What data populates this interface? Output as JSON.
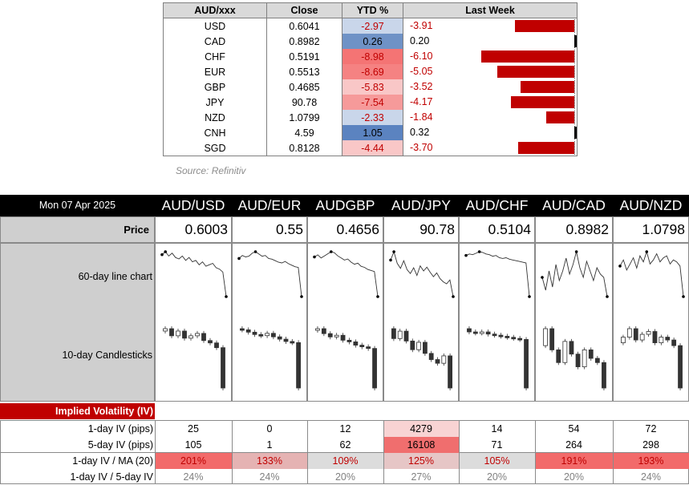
{
  "top_table": {
    "headers": [
      "AUD/xxx",
      "Close",
      "YTD %",
      "Last Week"
    ],
    "rows": [
      {
        "ccy": "USD",
        "close": "0.6041",
        "ytd": "-2.97",
        "ytd_color": "#c9d6ea",
        "lw": "-3.91",
        "lw_value": -3.91
      },
      {
        "ccy": "CAD",
        "close": "0.8982",
        "ytd": "0.26",
        "ytd_color": "#6f92c6",
        "lw": "0.20",
        "lw_value": 0.2
      },
      {
        "ccy": "CHF",
        "close": "0.5191",
        "ytd": "-8.98",
        "ytd_color": "#f47474",
        "lw": "-6.10",
        "lw_value": -6.1
      },
      {
        "ccy": "EUR",
        "close": "0.5513",
        "ytd": "-8.69",
        "ytd_color": "#f58282",
        "lw": "-5.05",
        "lw_value": -5.05
      },
      {
        "ccy": "GBP",
        "close": "0.4685",
        "ytd": "-5.83",
        "ytd_color": "#f9c7c7",
        "lw": "-3.52",
        "lw_value": -3.52
      },
      {
        "ccy": "JPY",
        "close": "90.78",
        "ytd": "-7.54",
        "ytd_color": "#f69a9a",
        "lw": "-4.17",
        "lw_value": -4.17
      },
      {
        "ccy": "NZD",
        "close": "1.0799",
        "ytd": "-2.33",
        "ytd_color": "#c9d6ea",
        "lw": "-1.84",
        "lw_value": -1.84
      },
      {
        "ccy": "CNH",
        "close": "4.59",
        "ytd": "1.05",
        "ytd_color": "#5b83c0",
        "lw": "0.32",
        "lw_value": 0.32
      },
      {
        "ccy": "SGD",
        "close": "0.8128",
        "ytd": "-4.44",
        "ytd_color": "#f9c7c7",
        "lw": "-3.70",
        "lw_value": -3.7
      }
    ]
  },
  "source": "Source: Refinitiv",
  "panel": {
    "date": "Mon 07 Apr 2025",
    "pairs": [
      "AUD/USD",
      "AUD/EUR",
      "AUDGBP",
      "AUD/JPY",
      "AUD/CHF",
      "AUD/CAD",
      "AUD/NZD"
    ],
    "price_label": "Price",
    "prices": [
      "0.6003",
      "0.55",
      "0.4656",
      "90.78",
      "0.5104",
      "0.8982",
      "1.0798"
    ],
    "line_chart_label": "60-day line chart",
    "candle_label": "10-day Candlesticks",
    "iv_title": "Implied Volatility (IV)",
    "iv_rows": [
      {
        "label": "1-day IV (pips)",
        "values": [
          "25",
          "0",
          "12",
          "4279",
          "14",
          "54",
          "72"
        ],
        "bg": [
          "",
          "",
          "",
          "#f8d3d3",
          "",
          "",
          ""
        ],
        "style": "plain"
      },
      {
        "label": "5-day IV (pips)",
        "values": [
          "105",
          "1",
          "62",
          "16108",
          "71",
          "264",
          "298"
        ],
        "bg": [
          "",
          "",
          "",
          "#f06e6e",
          "",
          "",
          ""
        ],
        "style": "plain"
      },
      {
        "label": "1-day IV / MA (20)",
        "values": [
          "201%",
          "133%",
          "109%",
          "125%",
          "105%",
          "191%",
          "193%"
        ],
        "bg": [
          "#f26a6a",
          "#e5b3b3",
          "#dcdcdc",
          "#e6c6c6",
          "#dcdcdc",
          "#f26a6a",
          "#f26a6a"
        ],
        "style": "red"
      },
      {
        "label": "1-day IV / 5-day IV",
        "values": [
          "24%",
          "24%",
          "20%",
          "27%",
          "20%",
          "20%",
          "24%"
        ],
        "bg": [
          "",
          "",
          "",
          "",
          "",
          "",
          ""
        ],
        "style": "grey"
      }
    ]
  },
  "chart_data": [
    {
      "type": "line",
      "title": "60-day line chart (AUD/USD)",
      "x": [
        1,
        2,
        3,
        4,
        5,
        6,
        7,
        8,
        9,
        10,
        11,
        12,
        13,
        14,
        15,
        16,
        17,
        18,
        19,
        20
      ],
      "values": [
        0.629,
        0.631,
        0.628,
        0.63,
        0.627,
        0.626,
        0.628,
        0.625,
        0.627,
        0.624,
        0.625,
        0.622,
        0.624,
        0.621,
        0.622,
        0.623,
        0.62,
        0.619,
        0.617,
        0.6
      ]
    },
    {
      "type": "line",
      "title": "60-day line chart (AUD/EUR)",
      "x": [
        1,
        2,
        3,
        4,
        5,
        6,
        7,
        8,
        9,
        10,
        11,
        12,
        13,
        14,
        15,
        16,
        17,
        18,
        19,
        20
      ],
      "values": [
        0.601,
        0.605,
        0.603,
        0.604,
        0.608,
        0.61,
        0.607,
        0.604,
        0.605,
        0.601,
        0.6,
        0.598,
        0.596,
        0.595,
        0.597,
        0.594,
        0.592,
        0.59,
        0.589,
        0.55
      ]
    },
    {
      "type": "line",
      "title": "60-day line chart (AUDGBP)",
      "x": [
        1,
        2,
        3,
        4,
        5,
        6,
        7,
        8,
        9,
        10,
        11,
        12,
        13,
        14,
        15,
        16,
        17,
        18,
        19,
        20
      ],
      "values": [
        0.504,
        0.506,
        0.503,
        0.505,
        0.507,
        0.509,
        0.508,
        0.505,
        0.503,
        0.501,
        0.502,
        0.499,
        0.497,
        0.498,
        0.495,
        0.494,
        0.492,
        0.491,
        0.49,
        0.466
      ]
    },
    {
      "type": "line",
      "title": "60-day line chart (AUD/JPY)",
      "x": [
        1,
        2,
        3,
        4,
        5,
        6,
        7,
        8,
        9,
        10,
        11,
        12,
        13,
        14,
        15,
        16,
        17,
        18,
        19,
        20
      ],
      "values": [
        96.5,
        97.8,
        96.0,
        95.2,
        96.4,
        95.0,
        94.4,
        95.3,
        94.1,
        95.6,
        94.8,
        95.4,
        94.6,
        93.9,
        94.5,
        93.6,
        93.1,
        92.8,
        93.4,
        90.8
      ]
    },
    {
      "type": "line",
      "title": "60-day line chart (AUD/CHF)",
      "x": [
        1,
        2,
        3,
        4,
        5,
        6,
        7,
        8,
        9,
        10,
        11,
        12,
        13,
        14,
        15,
        16,
        17,
        18,
        19,
        20
      ],
      "values": [
        0.565,
        0.567,
        0.566,
        0.568,
        0.57,
        0.569,
        0.567,
        0.566,
        0.564,
        0.565,
        0.562,
        0.561,
        0.562,
        0.56,
        0.559,
        0.558,
        0.557,
        0.556,
        0.555,
        0.51
      ]
    },
    {
      "type": "line",
      "title": "60-day line chart (AUD/CAD)",
      "x": [
        1,
        2,
        3,
        4,
        5,
        6,
        7,
        8,
        9,
        10,
        11,
        12,
        13,
        14,
        15,
        16,
        17,
        18,
        19,
        20
      ],
      "values": [
        0.904,
        0.9,
        0.906,
        0.901,
        0.908,
        0.903,
        0.906,
        0.91,
        0.905,
        0.908,
        0.912,
        0.907,
        0.904,
        0.909,
        0.906,
        0.903,
        0.907,
        0.905,
        0.904,
        0.898
      ]
    },
    {
      "type": "line",
      "title": "60-day line chart (AUD/NZD)",
      "x": [
        1,
        2,
        3,
        4,
        5,
        6,
        7,
        8,
        9,
        10,
        11,
        12,
        13,
        14,
        15,
        16,
        17,
        18,
        19,
        20
      ],
      "values": [
        1.095,
        1.098,
        1.093,
        1.096,
        1.099,
        1.094,
        1.1,
        1.097,
        1.102,
        1.096,
        1.098,
        1.101,
        1.097,
        1.099,
        1.1,
        1.096,
        1.098,
        1.097,
        1.095,
        1.08
      ]
    }
  ]
}
